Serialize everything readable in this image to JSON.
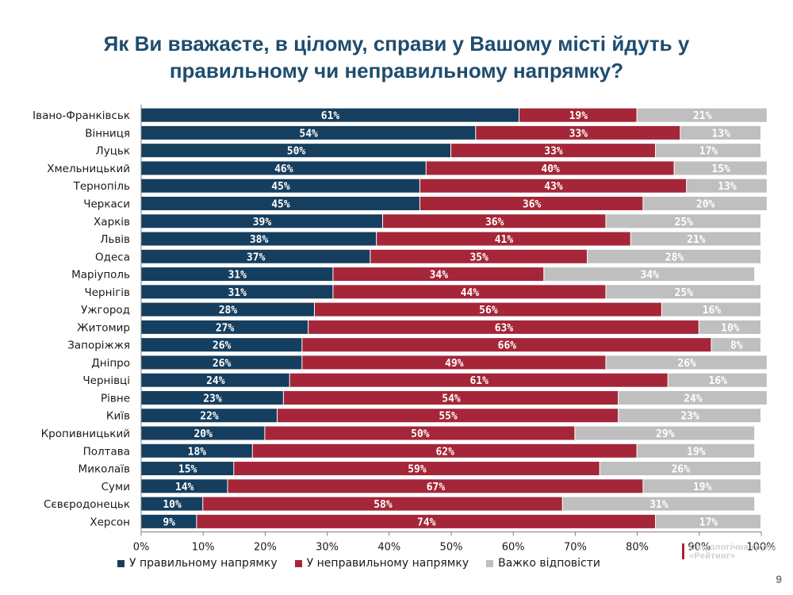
{
  "title_line1": "Як Ви вважаєте, в цілому, справи у Вашому місті йдуть у",
  "title_line2": "правильному чи неправильному напрямку?",
  "colors": {
    "correct": "#163e5e",
    "wrong": "#a42638",
    "hard": "#bfbfbf",
    "title": "#1f4d6e"
  },
  "chart_data": {
    "type": "bar",
    "orientation": "horizontal",
    "stacked": true,
    "categories": [
      "Івано-Франківськ",
      "Вінниця",
      "Луцьк",
      "Хмельницький",
      "Тернопіль",
      "Черкаси",
      "Харків",
      "Львів",
      "Одеса",
      "Маріуполь",
      "Чернігів",
      "Ужгород",
      "Житомир",
      "Запоріжжя",
      "Дніпро",
      "Чернівці",
      "Рівне",
      "Київ",
      "Кропивницький",
      "Полтава",
      "Миколаїв",
      "Суми",
      "Сєвєродонецьк",
      "Херсон"
    ],
    "series": [
      {
        "name": "У правильному напрямку",
        "color_key": "correct",
        "values": [
          61,
          54,
          50,
          46,
          45,
          45,
          39,
          38,
          37,
          31,
          31,
          28,
          27,
          26,
          26,
          24,
          23,
          22,
          20,
          18,
          15,
          14,
          10,
          9
        ]
      },
      {
        "name": "У неправильному напрямку",
        "color_key": "wrong",
        "values": [
          19,
          33,
          33,
          40,
          43,
          36,
          36,
          41,
          35,
          34,
          44,
          56,
          63,
          66,
          49,
          61,
          54,
          55,
          50,
          62,
          59,
          67,
          58,
          74
        ]
      },
      {
        "name": "Важко відповісти",
        "color_key": "hard",
        "values": [
          21,
          13,
          17,
          15,
          13,
          20,
          25,
          21,
          28,
          34,
          25,
          16,
          10,
          8,
          26,
          16,
          24,
          23,
          29,
          19,
          26,
          19,
          31,
          17
        ]
      }
    ],
    "xlim": [
      0,
      100
    ],
    "xticks": [
      "0%",
      "10%",
      "20%",
      "30%",
      "40%",
      "50%",
      "60%",
      "70%",
      "80%",
      "90%",
      "100%"
    ],
    "legend_position": "bottom"
  },
  "logo_text_line1": "Соціологічна група",
  "logo_text_line2": "«Рейтинг»",
  "page_number": "9"
}
